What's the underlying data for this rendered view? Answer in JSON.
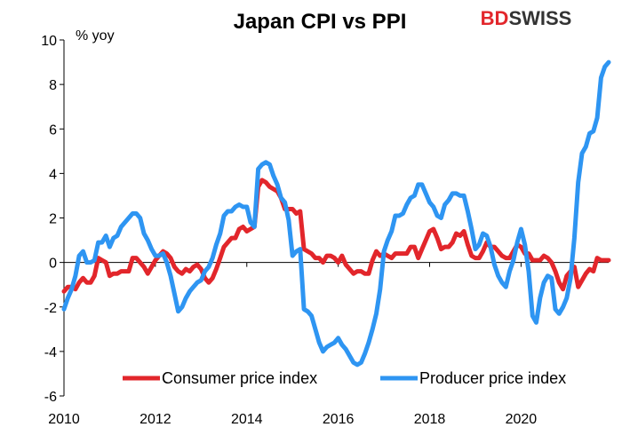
{
  "logo": {
    "brand": "BDSWISS",
    "part1": "BD",
    "part2": "SWISS",
    "color1": "#e2262b",
    "color2": "#333333"
  },
  "chart_data": {
    "type": "line",
    "title": "Japan CPI vs PPI",
    "ylabel": "% yoy",
    "xlabel": "",
    "xlim": [
      2010,
      2021.917
    ],
    "ylim": [
      -6,
      10
    ],
    "x_ticks": [
      "2010",
      "2012",
      "2014",
      "2016",
      "2018",
      "2020"
    ],
    "y_ticks": [
      "10",
      "8",
      "6",
      "4",
      "2",
      "0",
      "-2",
      "-4",
      "-6"
    ],
    "legend": "bottom",
    "series": [
      {
        "name": "Consumer price index",
        "color": "#e2262b",
        "points": [
          [
            2010.0,
            -1.3
          ],
          [
            2010.083,
            -1.1
          ],
          [
            2010.167,
            -1.1
          ],
          [
            2010.25,
            -1.2
          ],
          [
            2010.333,
            -0.9
          ],
          [
            2010.417,
            -0.7
          ],
          [
            2010.5,
            -0.9
          ],
          [
            2010.583,
            -0.9
          ],
          [
            2010.667,
            -0.6
          ],
          [
            2010.75,
            0.2
          ],
          [
            2010.833,
            0.1
          ],
          [
            2010.917,
            0.0
          ],
          [
            2011.0,
            -0.6
          ],
          [
            2011.083,
            -0.5
          ],
          [
            2011.167,
            -0.5
          ],
          [
            2011.25,
            -0.4
          ],
          [
            2011.333,
            -0.4
          ],
          [
            2011.417,
            -0.4
          ],
          [
            2011.5,
            0.2
          ],
          [
            2011.583,
            0.2
          ],
          [
            2011.667,
            0.0
          ],
          [
            2011.75,
            -0.2
          ],
          [
            2011.833,
            -0.5
          ],
          [
            2011.917,
            -0.2
          ],
          [
            2012.0,
            0.1
          ],
          [
            2012.083,
            0.3
          ],
          [
            2012.167,
            0.5
          ],
          [
            2012.25,
            0.4
          ],
          [
            2012.333,
            0.2
          ],
          [
            2012.417,
            -0.2
          ],
          [
            2012.5,
            -0.4
          ],
          [
            2012.583,
            -0.5
          ],
          [
            2012.667,
            -0.3
          ],
          [
            2012.75,
            -0.4
          ],
          [
            2012.833,
            -0.2
          ],
          [
            2012.917,
            -0.1
          ],
          [
            2013.0,
            -0.3
          ],
          [
            2013.083,
            -0.7
          ],
          [
            2013.167,
            -0.9
          ],
          [
            2013.25,
            -0.7
          ],
          [
            2013.333,
            -0.3
          ],
          [
            2013.417,
            0.2
          ],
          [
            2013.5,
            0.7
          ],
          [
            2013.583,
            0.9
          ],
          [
            2013.667,
            1.1
          ],
          [
            2013.75,
            1.1
          ],
          [
            2013.833,
            1.5
          ],
          [
            2013.917,
            1.6
          ],
          [
            2014.0,
            1.4
          ],
          [
            2014.083,
            1.5
          ],
          [
            2014.167,
            1.6
          ],
          [
            2014.25,
            3.4
          ],
          [
            2014.333,
            3.7
          ],
          [
            2014.417,
            3.6
          ],
          [
            2014.5,
            3.4
          ],
          [
            2014.583,
            3.3
          ],
          [
            2014.667,
            3.2
          ],
          [
            2014.75,
            2.9
          ],
          [
            2014.833,
            2.4
          ],
          [
            2014.917,
            2.4
          ],
          [
            2015.0,
            2.4
          ],
          [
            2015.083,
            2.2
          ],
          [
            2015.167,
            2.3
          ],
          [
            2015.25,
            0.6
          ],
          [
            2015.333,
            0.5
          ],
          [
            2015.417,
            0.4
          ],
          [
            2015.5,
            0.2
          ],
          [
            2015.583,
            0.2
          ],
          [
            2015.667,
            0.0
          ],
          [
            2015.75,
            0.3
          ],
          [
            2015.833,
            0.3
          ],
          [
            2015.917,
            0.2
          ],
          [
            2016.0,
            0.0
          ],
          [
            2016.083,
            0.3
          ],
          [
            2016.167,
            -0.1
          ],
          [
            2016.25,
            -0.3
          ],
          [
            2016.333,
            -0.5
          ],
          [
            2016.417,
            -0.4
          ],
          [
            2016.5,
            -0.4
          ],
          [
            2016.583,
            -0.5
          ],
          [
            2016.667,
            -0.5
          ],
          [
            2016.75,
            0.1
          ],
          [
            2016.833,
            0.5
          ],
          [
            2016.917,
            0.3
          ],
          [
            2017.0,
            0.4
          ],
          [
            2017.083,
            0.3
          ],
          [
            2017.167,
            0.2
          ],
          [
            2017.25,
            0.4
          ],
          [
            2017.333,
            0.4
          ],
          [
            2017.417,
            0.4
          ],
          [
            2017.5,
            0.4
          ],
          [
            2017.583,
            0.7
          ],
          [
            2017.667,
            0.7
          ],
          [
            2017.75,
            0.2
          ],
          [
            2017.833,
            0.6
          ],
          [
            2017.917,
            1.0
          ],
          [
            2018.0,
            1.4
          ],
          [
            2018.083,
            1.5
          ],
          [
            2018.167,
            1.1
          ],
          [
            2018.25,
            0.6
          ],
          [
            2018.333,
            0.7
          ],
          [
            2018.417,
            0.7
          ],
          [
            2018.5,
            0.9
          ],
          [
            2018.583,
            1.3
          ],
          [
            2018.667,
            1.2
          ],
          [
            2018.75,
            1.4
          ],
          [
            2018.833,
            0.8
          ],
          [
            2018.917,
            0.3
          ],
          [
            2019.0,
            0.2
          ],
          [
            2019.083,
            0.2
          ],
          [
            2019.167,
            0.5
          ],
          [
            2019.25,
            0.9
          ],
          [
            2019.333,
            0.7
          ],
          [
            2019.417,
            0.7
          ],
          [
            2019.5,
            0.5
          ],
          [
            2019.583,
            0.3
          ],
          [
            2019.667,
            0.2
          ],
          [
            2019.75,
            0.2
          ],
          [
            2019.833,
            0.5
          ],
          [
            2019.917,
            0.8
          ],
          [
            2020.0,
            0.7
          ],
          [
            2020.083,
            0.4
          ],
          [
            2020.167,
            0.4
          ],
          [
            2020.25,
            0.1
          ],
          [
            2020.333,
            0.1
          ],
          [
            2020.417,
            0.1
          ],
          [
            2020.5,
            0.3
          ],
          [
            2020.583,
            0.2
          ],
          [
            2020.667,
            0.0
          ],
          [
            2020.75,
            -0.4
          ],
          [
            2020.833,
            -0.9
          ],
          [
            2020.917,
            -1.2
          ],
          [
            2021.0,
            -0.6
          ],
          [
            2021.083,
            -0.4
          ],
          [
            2021.167,
            -0.2
          ],
          [
            2021.25,
            -1.1
          ],
          [
            2021.333,
            -0.8
          ],
          [
            2021.417,
            -0.5
          ],
          [
            2021.5,
            -0.3
          ],
          [
            2021.583,
            -0.4
          ],
          [
            2021.667,
            0.2
          ],
          [
            2021.75,
            0.1
          ],
          [
            2021.833,
            0.1
          ],
          [
            2021.917,
            0.1
          ]
        ]
      },
      {
        "name": "Producer price index",
        "color": "#2e95f2",
        "points": [
          [
            2010.0,
            -2.1
          ],
          [
            2010.083,
            -1.6
          ],
          [
            2010.167,
            -1.2
          ],
          [
            2010.25,
            -0.6
          ],
          [
            2010.333,
            0.3
          ],
          [
            2010.417,
            0.5
          ],
          [
            2010.5,
            0.0
          ],
          [
            2010.583,
            0.0
          ],
          [
            2010.667,
            0.1
          ],
          [
            2010.75,
            0.9
          ],
          [
            2010.833,
            0.9
          ],
          [
            2010.917,
            1.2
          ],
          [
            2011.0,
            0.7
          ],
          [
            2011.083,
            1.1
          ],
          [
            2011.167,
            1.2
          ],
          [
            2011.25,
            1.6
          ],
          [
            2011.333,
            1.8
          ],
          [
            2011.417,
            2.0
          ],
          [
            2011.5,
            2.2
          ],
          [
            2011.583,
            2.2
          ],
          [
            2011.667,
            2.0
          ],
          [
            2011.75,
            1.3
          ],
          [
            2011.833,
            1.0
          ],
          [
            2011.917,
            0.6
          ],
          [
            2012.0,
            0.3
          ],
          [
            2012.083,
            0.3
          ],
          [
            2012.167,
            0.4
          ],
          [
            2012.25,
            0.0
          ],
          [
            2012.333,
            -0.6
          ],
          [
            2012.417,
            -1.4
          ],
          [
            2012.5,
            -2.2
          ],
          [
            2012.583,
            -2.0
          ],
          [
            2012.667,
            -1.6
          ],
          [
            2012.75,
            -1.3
          ],
          [
            2012.833,
            -1.1
          ],
          [
            2012.917,
            -0.9
          ],
          [
            2013.0,
            -0.8
          ],
          [
            2013.083,
            -0.4
          ],
          [
            2013.167,
            -0.2
          ],
          [
            2013.25,
            0.2
          ],
          [
            2013.333,
            0.8
          ],
          [
            2013.417,
            1.3
          ],
          [
            2013.5,
            2.1
          ],
          [
            2013.583,
            2.3
          ],
          [
            2013.667,
            2.3
          ],
          [
            2013.75,
            2.5
          ],
          [
            2013.833,
            2.6
          ],
          [
            2013.917,
            2.5
          ],
          [
            2014.0,
            2.5
          ],
          [
            2014.083,
            1.8
          ],
          [
            2014.167,
            1.6
          ],
          [
            2014.25,
            4.2
          ],
          [
            2014.333,
            4.4
          ],
          [
            2014.417,
            4.5
          ],
          [
            2014.5,
            4.4
          ],
          [
            2014.583,
            3.9
          ],
          [
            2014.667,
            3.5
          ],
          [
            2014.75,
            2.9
          ],
          [
            2014.833,
            2.7
          ],
          [
            2014.917,
            1.9
          ],
          [
            2015.0,
            0.3
          ],
          [
            2015.083,
            0.5
          ],
          [
            2015.167,
            0.6
          ],
          [
            2015.25,
            -2.1
          ],
          [
            2015.333,
            -2.2
          ],
          [
            2015.417,
            -2.4
          ],
          [
            2015.5,
            -3.0
          ],
          [
            2015.583,
            -3.6
          ],
          [
            2015.667,
            -4.0
          ],
          [
            2015.75,
            -3.8
          ],
          [
            2015.833,
            -3.7
          ],
          [
            2015.917,
            -3.6
          ],
          [
            2016.0,
            -3.4
          ],
          [
            2016.083,
            -3.7
          ],
          [
            2016.167,
            -3.9
          ],
          [
            2016.25,
            -4.2
          ],
          [
            2016.333,
            -4.5
          ],
          [
            2016.417,
            -4.6
          ],
          [
            2016.5,
            -4.5
          ],
          [
            2016.583,
            -4.1
          ],
          [
            2016.667,
            -3.6
          ],
          [
            2016.75,
            -3.0
          ],
          [
            2016.833,
            -2.3
          ],
          [
            2016.917,
            -1.2
          ],
          [
            2017.0,
            0.5
          ],
          [
            2017.083,
            1.0
          ],
          [
            2017.167,
            1.4
          ],
          [
            2017.25,
            2.1
          ],
          [
            2017.333,
            2.1
          ],
          [
            2017.417,
            2.2
          ],
          [
            2017.5,
            2.6
          ],
          [
            2017.583,
            2.9
          ],
          [
            2017.667,
            3.0
          ],
          [
            2017.75,
            3.5
          ],
          [
            2017.833,
            3.5
          ],
          [
            2017.917,
            3.1
          ],
          [
            2018.0,
            2.7
          ],
          [
            2018.083,
            2.5
          ],
          [
            2018.167,
            2.1
          ],
          [
            2018.25,
            2.0
          ],
          [
            2018.333,
            2.6
          ],
          [
            2018.417,
            2.8
          ],
          [
            2018.5,
            3.1
          ],
          [
            2018.583,
            3.1
          ],
          [
            2018.667,
            3.0
          ],
          [
            2018.75,
            3.0
          ],
          [
            2018.833,
            2.3
          ],
          [
            2018.917,
            1.5
          ],
          [
            2019.0,
            0.6
          ],
          [
            2019.083,
            0.8
          ],
          [
            2019.167,
            1.3
          ],
          [
            2019.25,
            1.2
          ],
          [
            2019.333,
            0.7
          ],
          [
            2019.417,
            -0.1
          ],
          [
            2019.5,
            -0.6
          ],
          [
            2019.583,
            -0.9
          ],
          [
            2019.667,
            -1.1
          ],
          [
            2019.75,
            -0.4
          ],
          [
            2019.833,
            0.1
          ],
          [
            2019.917,
            0.9
          ],
          [
            2020.0,
            1.5
          ],
          [
            2020.083,
            0.8
          ],
          [
            2020.167,
            -0.4
          ],
          [
            2020.25,
            -2.4
          ],
          [
            2020.333,
            -2.7
          ],
          [
            2020.417,
            -1.6
          ],
          [
            2020.5,
            -0.9
          ],
          [
            2020.583,
            -0.6
          ],
          [
            2020.667,
            -0.7
          ],
          [
            2020.75,
            -2.1
          ],
          [
            2020.833,
            -2.3
          ],
          [
            2020.917,
            -2.0
          ],
          [
            2021.0,
            -1.6
          ],
          [
            2021.083,
            -0.7
          ],
          [
            2021.167,
            1.1
          ],
          [
            2021.25,
            3.6
          ],
          [
            2021.333,
            4.9
          ],
          [
            2021.417,
            5.2
          ],
          [
            2021.5,
            5.8
          ],
          [
            2021.583,
            5.9
          ],
          [
            2021.667,
            6.5
          ],
          [
            2021.75,
            8.3
          ],
          [
            2021.833,
            8.8
          ],
          [
            2021.917,
            9.0
          ]
        ]
      }
    ]
  }
}
